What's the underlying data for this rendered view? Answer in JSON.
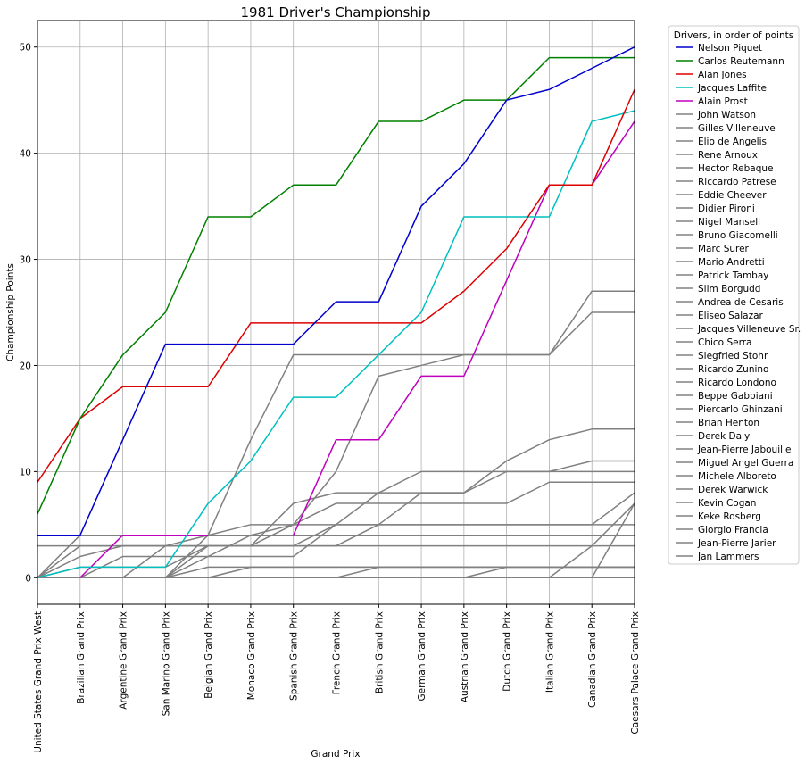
{
  "chart_data": {
    "type": "line",
    "title": "1981 Driver's Championship",
    "xlabel": "Grand Prix",
    "ylabel": "Championship Points",
    "ylim": [
      -2.5,
      52.5
    ],
    "yticks": [
      0,
      10,
      20,
      30,
      40,
      50
    ],
    "grid": true,
    "legend_title": "Drivers, in order of points",
    "legend_position": "outside-right",
    "categories": [
      "United States Grand Prix West",
      "Brazilian Grand Prix",
      "Argentine Grand Prix",
      "San Marino Grand Prix",
      "Belgian Grand Prix",
      "Monaco Grand Prix",
      "Spanish Grand Prix",
      "French Grand Prix",
      "British Grand Prix",
      "German Grand Prix",
      "Austrian Grand Prix",
      "Dutch Grand Prix",
      "Italian Grand Prix",
      "Canadian Grand Prix",
      "Caesars Palace Grand Prix"
    ],
    "series": [
      {
        "name": "Nelson Piquet",
        "color": "#0000cc",
        "values": [
          4,
          4,
          13,
          22,
          22,
          22,
          22,
          26,
          26,
          35,
          39,
          45,
          46,
          48,
          50
        ]
      },
      {
        "name": "Carlos Reutemann",
        "color": "#008000",
        "values": [
          6,
          15,
          21,
          25,
          34,
          34,
          37,
          37,
          43,
          43,
          45,
          45,
          49,
          49,
          49
        ]
      },
      {
        "name": "Alan Jones",
        "color": "#dd0000",
        "values": [
          9,
          15,
          18,
          18,
          18,
          24,
          24,
          24,
          24,
          24,
          27,
          31,
          37,
          37,
          46
        ]
      },
      {
        "name": "Jacques Laffite",
        "color": "#00bfbf",
        "values": [
          0,
          1,
          1,
          1,
          7,
          11,
          17,
          17,
          21,
          25,
          34,
          34,
          34,
          43,
          44
        ]
      },
      {
        "name": "Alain Prost",
        "color": "#bf00bf",
        "values": [
          null,
          0,
          4,
          4,
          4,
          null,
          4,
          13,
          13,
          19,
          19,
          28,
          37,
          37,
          43
        ]
      },
      {
        "name": "John Watson",
        "color": "#808080",
        "values": [
          0,
          2,
          3,
          3,
          3,
          3,
          7,
          8,
          8,
          8,
          8,
          11,
          13,
          14,
          14
        ]
      },
      {
        "name": "Gilles Villeneuve",
        "color": "#808080",
        "values": [
          0,
          0,
          0,
          0,
          4,
          13,
          21,
          21,
          21,
          21,
          21,
          21,
          21,
          25,
          25
        ]
      },
      {
        "name": "Elio de Angelis",
        "color": "#808080",
        "values": [
          null,
          0,
          2,
          2,
          2,
          2,
          2,
          5,
          8,
          10,
          10,
          10,
          10,
          11,
          11
        ]
      },
      {
        "name": "Rene Arnoux",
        "color": "#808080",
        "values": [
          null,
          null,
          0,
          0,
          0,
          0,
          0,
          0,
          0,
          0,
          0,
          0,
          0,
          3,
          7
        ]
      },
      {
        "name": "Hector Rebaque",
        "color": "#808080",
        "values": [
          null,
          null,
          0,
          0,
          2,
          4,
          5,
          7,
          7,
          7,
          7,
          7,
          9,
          9,
          9
        ]
      },
      {
        "name": "Riccardo Patrese",
        "color": "#808080",
        "values": [
          0,
          3,
          3,
          3,
          3,
          3,
          3,
          3,
          5,
          5,
          5,
          5,
          5,
          5,
          8
        ]
      },
      {
        "name": "Eddie Cheever",
        "color": "#808080",
        "values": [
          0,
          1,
          1,
          1,
          3,
          3,
          3,
          5,
          5,
          8,
          8,
          10,
          10,
          10,
          10
        ]
      },
      {
        "name": "Didier Pironi",
        "color": "#808080",
        "values": [
          null,
          null,
          0,
          3,
          4,
          5,
          5,
          10,
          19,
          20,
          21,
          21,
          21,
          27,
          27
        ]
      },
      {
        "name": "Nigel Mansell",
        "color": "#808080",
        "values": [
          null,
          null,
          0,
          0,
          3,
          3,
          5,
          5,
          5,
          5,
          5,
          5,
          5,
          5,
          5
        ]
      },
      {
        "name": "Bruno Giacomelli",
        "color": "#808080",
        "values": [
          null,
          null,
          0,
          0,
          0,
          0,
          0,
          0,
          0,
          0,
          0,
          0,
          0,
          0,
          7
        ]
      },
      {
        "name": "Marc Surer",
        "color": "#808080",
        "values": [
          0,
          4,
          4,
          4,
          4,
          4,
          4,
          4,
          4,
          4,
          4,
          4,
          4,
          4,
          4
        ]
      },
      {
        "name": "Mario Andretti",
        "color": "#808080",
        "values": [
          3,
          3,
          3,
          3,
          3,
          3,
          3,
          3,
          3,
          3,
          3,
          3,
          3,
          3,
          3
        ]
      },
      {
        "name": "Patrick Tambay",
        "color": "#808080",
        "values": [
          null,
          null,
          null,
          0,
          0,
          1,
          1,
          1,
          1,
          1,
          1,
          1,
          1,
          1,
          1
        ]
      },
      {
        "name": "Slim Borgudd",
        "color": "#808080",
        "values": [
          null,
          null,
          null,
          null,
          null,
          null,
          null,
          0,
          1,
          1,
          1,
          1,
          1,
          1,
          1
        ]
      },
      {
        "name": "Andrea de Cesaris",
        "color": "#808080",
        "values": [
          null,
          null,
          0,
          0,
          1,
          1,
          1,
          1,
          1,
          1,
          1,
          1,
          1,
          1,
          1
        ]
      },
      {
        "name": "Eliseo Salazar",
        "color": "#808080",
        "values": [
          null,
          null,
          null,
          null,
          null,
          null,
          null,
          null,
          null,
          null,
          0,
          1,
          1,
          1,
          1
        ]
      },
      {
        "name": "Jacques Villeneuve Sr.",
        "color": "#808080",
        "values": [
          null,
          null,
          null,
          null,
          null,
          null,
          null,
          null,
          null,
          null,
          null,
          null,
          null,
          null,
          0
        ]
      },
      {
        "name": "Chico Serra",
        "color": "#808080",
        "values": [
          null,
          0,
          0,
          0,
          0,
          0,
          0,
          0,
          0,
          0,
          0,
          0,
          0,
          0,
          0
        ]
      },
      {
        "name": "Siegfried Stohr",
        "color": "#808080",
        "values": [
          0,
          0,
          0,
          0,
          0,
          0,
          0,
          0,
          0,
          0,
          0,
          0,
          0,
          0,
          0
        ]
      },
      {
        "name": "Ricardo Zunino",
        "color": "#808080",
        "values": [
          null,
          null,
          0,
          0,
          0,
          0,
          0,
          0,
          0,
          0,
          0,
          0,
          0,
          0,
          0
        ]
      },
      {
        "name": "Ricardo Londono",
        "color": "#808080",
        "values": [
          null,
          0,
          0,
          0,
          0,
          0,
          0,
          0,
          0,
          0,
          0,
          0,
          0,
          0,
          0
        ]
      },
      {
        "name": "Beppe Gabbiani",
        "color": "#808080",
        "values": [
          0,
          0,
          0,
          0,
          0,
          0,
          0,
          0,
          0,
          0,
          0,
          0,
          0,
          0,
          0
        ]
      },
      {
        "name": "Piercarlo Ghinzani",
        "color": "#808080",
        "values": [
          null,
          null,
          null,
          null,
          0,
          0,
          0,
          0,
          0,
          0,
          0,
          0,
          0,
          0,
          0
        ]
      },
      {
        "name": "Brian Henton",
        "color": "#808080",
        "values": [
          null,
          null,
          null,
          0,
          0,
          0,
          0,
          0,
          0,
          0,
          0,
          0,
          0,
          0,
          0
        ]
      },
      {
        "name": "Derek Daly",
        "color": "#808080",
        "values": [
          null,
          null,
          null,
          0,
          0,
          0,
          0,
          0,
          0,
          0,
          0,
          0,
          0,
          0,
          0
        ]
      },
      {
        "name": "Jean-Pierre Jabouille",
        "color": "#808080",
        "values": [
          null,
          null,
          null,
          null,
          null,
          0,
          0,
          0,
          0,
          0,
          0,
          0,
          0,
          0,
          0
        ]
      },
      {
        "name": "Miguel Angel Guerra",
        "color": "#808080",
        "values": [
          null,
          null,
          null,
          0,
          0,
          0,
          0,
          0,
          0,
          0,
          0,
          0,
          0,
          0,
          0
        ]
      },
      {
        "name": "Michele Alboreto",
        "color": "#808080",
        "values": [
          null,
          null,
          null,
          0,
          0,
          0,
          0,
          0,
          0,
          0,
          0,
          0,
          0,
          0,
          0
        ]
      },
      {
        "name": "Derek Warwick",
        "color": "#808080",
        "values": [
          null,
          null,
          null,
          0,
          0,
          0,
          0,
          0,
          0,
          0,
          0,
          0,
          0,
          0,
          0
        ]
      },
      {
        "name": "Kevin Cogan",
        "color": "#808080",
        "values": [
          0,
          0,
          0,
          0,
          0,
          0,
          0,
          0,
          0,
          0,
          0,
          0,
          0,
          0,
          0
        ]
      },
      {
        "name": "Keke Rosberg",
        "color": "#808080",
        "values": [
          0,
          0,
          0,
          0,
          0,
          0,
          0,
          0,
          0,
          0,
          0,
          0,
          0,
          0,
          0
        ]
      },
      {
        "name": "Giorgio Francia",
        "color": "#808080",
        "values": [
          null,
          null,
          null,
          null,
          null,
          null,
          0,
          0,
          0,
          0,
          0,
          0,
          0,
          0,
          0
        ]
      },
      {
        "name": "Jean-Pierre Jarier",
        "color": "#808080",
        "values": [
          null,
          null,
          null,
          null,
          null,
          null,
          null,
          0,
          0,
          0,
          0,
          0,
          0,
          0,
          0
        ]
      },
      {
        "name": "Jan Lammers",
        "color": "#808080",
        "values": [
          0,
          0,
          0,
          0,
          0,
          0,
          0,
          0,
          0,
          0,
          0,
          0,
          0,
          0,
          0
        ]
      }
    ]
  }
}
